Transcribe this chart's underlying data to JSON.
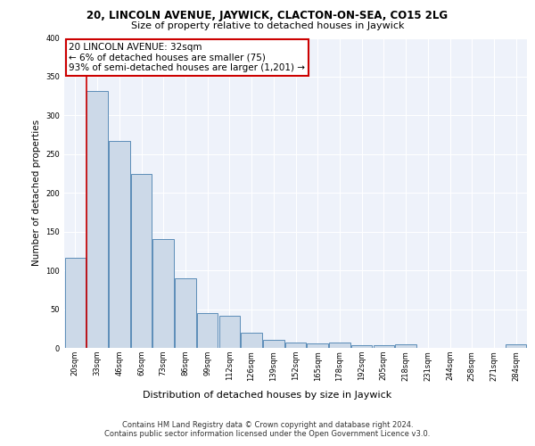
{
  "title_main": "20, LINCOLN AVENUE, JAYWICK, CLACTON-ON-SEA, CO15 2LG",
  "title_sub": "Size of property relative to detached houses in Jaywick",
  "xlabel": "Distribution of detached houses by size in Jaywick",
  "ylabel": "Number of detached properties",
  "categories": [
    "20sqm",
    "33sqm",
    "46sqm",
    "60sqm",
    "73sqm",
    "86sqm",
    "99sqm",
    "112sqm",
    "126sqm",
    "139sqm",
    "152sqm",
    "165sqm",
    "178sqm",
    "192sqm",
    "205sqm",
    "218sqm",
    "231sqm",
    "244sqm",
    "258sqm",
    "271sqm",
    "284sqm"
  ],
  "values": [
    116,
    332,
    267,
    224,
    141,
    90,
    45,
    42,
    19,
    10,
    7,
    6,
    7,
    4,
    3,
    5,
    0,
    0,
    0,
    0,
    5
  ],
  "bar_color": "#ccd9e8",
  "bar_edge_color": "#5b8db8",
  "annotation_text": "20 LINCOLN AVENUE: 32sqm\n← 6% of detached houses are smaller (75)\n93% of semi-detached houses are larger (1,201) →",
  "annotation_box_color": "#ffffff",
  "annotation_box_edge": "#cc0000",
  "vline_color": "#cc0000",
  "vline_x": 0.5,
  "footer_text": "Contains HM Land Registry data © Crown copyright and database right 2024.\nContains public sector information licensed under the Open Government Licence v3.0.",
  "ylim": [
    0,
    400
  ],
  "yticks": [
    0,
    50,
    100,
    150,
    200,
    250,
    300,
    350,
    400
  ],
  "plot_bg_color": "#eef2fa",
  "title_main_fontsize": 8.5,
  "title_sub_fontsize": 8.0,
  "xlabel_fontsize": 8.0,
  "ylabel_fontsize": 7.5,
  "tick_fontsize": 6.0,
  "footer_fontsize": 6.0,
  "annotation_fontsize": 7.5
}
